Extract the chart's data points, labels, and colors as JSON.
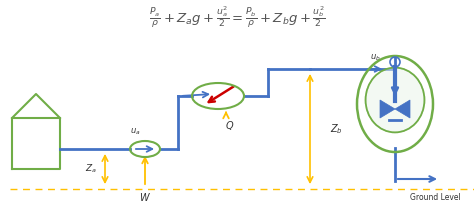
{
  "title_formula": "$\\frac{P_a}{\\rho} + Z_ag + \\frac{u_a^2}{2} = \\frac{P_b}{\\rho} + Z_bg + \\frac{u_b^2}{2}$",
  "pipe_color": "#4472C4",
  "vessel_color": "#70AD47",
  "arrow_color": "#FFC000",
  "red_arrow_color": "#CC0000",
  "ground_level_text": "Ground Level",
  "label_ua": "$u_a$",
  "label_ub": "$u_b$",
  "label_za": "$Z_a$",
  "label_zb": "$Z_b$",
  "label_Q": "$Q$",
  "label_W": "$W$",
  "bg_color": "#ffffff",
  "text_color": "#555555"
}
